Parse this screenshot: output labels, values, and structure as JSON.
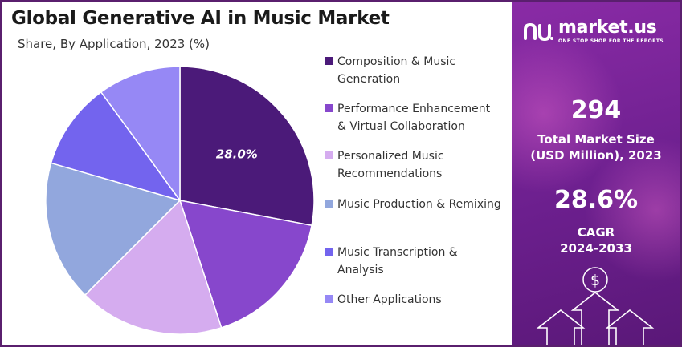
{
  "title": "Global Generative AI in Music Market",
  "subtitle": "Share, By Application, 2023 (%)",
  "chart_data": {
    "type": "pie",
    "title": "Global Generative AI in Music Market",
    "subtitle": "Share, By Application, 2023 (%)",
    "legend_placement": "right",
    "slices": [
      {
        "label": "Composition & Music Generation",
        "value": 28.0,
        "color": "#4b1a79",
        "shown_label": "28.0%"
      },
      {
        "label": "Performance Enhancement & Virtual Collaboration",
        "value": 17.0,
        "color": "#8747cc",
        "shown_label": ""
      },
      {
        "label": "Personalized Music Recommendations",
        "value": 17.5,
        "color": "#d5acef",
        "shown_label": ""
      },
      {
        "label": "Music Production & Remixing",
        "value": 17.0,
        "color": "#92a7dd",
        "shown_label": ""
      },
      {
        "label": "Music Transcription & Analysis",
        "value": 10.5,
        "color": "#7364ee",
        "shown_label": ""
      },
      {
        "label": "Other Applications",
        "value": 10.0,
        "color": "#9688f5",
        "shown_label": ""
      }
    ]
  },
  "legend": [
    {
      "line1": "Composition & Music",
      "line2": "Generation"
    },
    {
      "line1": "Performance Enhancement",
      "line2": "& Virtual Collaboration"
    },
    {
      "line1": "Personalized Music",
      "line2": "Recommendations"
    },
    {
      "line1": "Music Production & Remixing",
      "line2": ""
    },
    {
      "line1": "Music Transcription &",
      "line2": "Analysis"
    },
    {
      "line1": "Other Applications",
      "line2": ""
    }
  ],
  "panel": {
    "brand_name": "market.us",
    "brand_tagline": "ONE STOP SHOP FOR THE REPORTS",
    "market_size_value": "294",
    "market_size_label_1": "Total Market Size",
    "market_size_label_2": "(USD Million), 2023",
    "cagr_value": "28.6%",
    "cagr_label_1": "CAGR",
    "cagr_label_2": "2024-2033",
    "dollar_symbol": "$"
  },
  "icons": [
    "logo-icon",
    "dollar-coin-icon",
    "growth-arrow-icon"
  ]
}
